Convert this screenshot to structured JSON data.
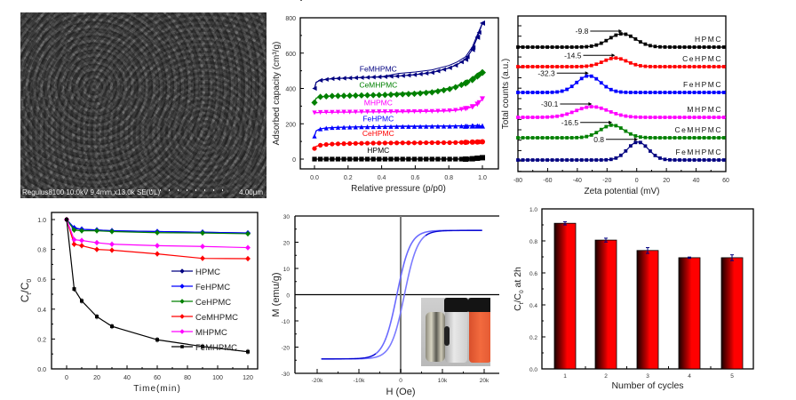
{
  "sem_image": {
    "caption": "Regulus8100 10.0kV 9.4mm x13.0k SE(UL)",
    "scale_bar": "4.00μm"
  },
  "chart_data": [
    {
      "id": "bet",
      "type": "line",
      "title": "",
      "xlabel": "Relative pressure (p/p0)",
      "ylabel": "Adsorbed capacity (cm³/g)",
      "xlim": [
        -0.08,
        1.05
      ],
      "ylim": [
        -50,
        800
      ],
      "xticks": [
        "0.0",
        "0.2",
        "0.4",
        "0.6",
        "0.8",
        "1.0"
      ],
      "xtick_values": [
        0,
        0.2,
        0.4,
        0.6,
        0.8,
        1.0
      ],
      "yticks": [
        "0",
        "200",
        "400",
        "600",
        "800"
      ],
      "ytick_values": [
        0,
        200,
        400,
        600,
        800
      ],
      "x": [
        0.0,
        0.01,
        0.03,
        0.06,
        0.1,
        0.15,
        0.2,
        0.3,
        0.4,
        0.5,
        0.6,
        0.7,
        0.8,
        0.85,
        0.9,
        0.94,
        0.97,
        1.0
      ],
      "series": [
        {
          "name": "HPMC",
          "color": "#000000",
          "marker": "square",
          "values": [
            0,
            0,
            0,
            0,
            0,
            0,
            0,
            0,
            0,
            0,
            0,
            0,
            0,
            0,
            0,
            2,
            5,
            8
          ]
        },
        {
          "name": "CeHPMC",
          "color": "#ff0000",
          "marker": "circle",
          "values": [
            60,
            72,
            78,
            82,
            85,
            87,
            88,
            90,
            91,
            92,
            92,
            93,
            93,
            94,
            95,
            96,
            97,
            98
          ]
        },
        {
          "name": "FeHPMC",
          "color": "#0000ff",
          "marker": "triangle-up",
          "values": [
            130,
            160,
            170,
            175,
            178,
            180,
            181,
            183,
            184,
            185,
            185,
            186,
            186,
            187,
            187,
            188,
            188,
            188
          ]
        },
        {
          "name": "MHPMC",
          "color": "#ff00ff",
          "marker": "triangle-down",
          "values": [
            262,
            263,
            264,
            265,
            265,
            266,
            266,
            267,
            268,
            268,
            269,
            270,
            273,
            277,
            285,
            295,
            310,
            340
          ]
        },
        {
          "name": "CeMHPMC",
          "color": "#008000",
          "marker": "diamond",
          "values": [
            320,
            345,
            352,
            355,
            357,
            358,
            359,
            361,
            363,
            366,
            370,
            378,
            395,
            410,
            430,
            450,
            470,
            490
          ]
        },
        {
          "name": "FeMHPMC",
          "color": "#000080",
          "marker": "triangle-left",
          "values": [
            400,
            435,
            445,
            450,
            455,
            457,
            459,
            462,
            466,
            470,
            478,
            490,
            515,
            535,
            565,
            620,
            690,
            770
          ]
        }
      ],
      "annotations": [
        {
          "text": "FeMHPMC",
          "color": "#000080",
          "x": 0.38,
          "y": 495
        },
        {
          "text": "CeMHPMC",
          "color": "#008000",
          "x": 0.38,
          "y": 405
        },
        {
          "text": "MHPMC",
          "color": "#ff00ff",
          "x": 0.38,
          "y": 305
        },
        {
          "text": "FeHPMC",
          "color": "#0000ff",
          "x": 0.38,
          "y": 215
        },
        {
          "text": "CeHPMC",
          "color": "#ff0000",
          "x": 0.38,
          "y": 130
        },
        {
          "text": "HPMC",
          "color": "#000000",
          "x": 0.38,
          "y": 35
        }
      ]
    },
    {
      "id": "zeta",
      "type": "line",
      "title": "",
      "xlabel": "Zeta potential (mV)",
      "ylabel": "Total counts (a.u.)",
      "xlim": [
        -80,
        60
      ],
      "xticks": [
        "-80",
        "-60",
        "-40",
        "-20",
        "0",
        "20",
        "40",
        "60"
      ],
      "xtick_values": [
        -80,
        -60,
        -40,
        -20,
        0,
        20,
        40,
        60
      ],
      "series": [
        {
          "name": "HPMC",
          "color": "#000000",
          "peak": -9.8,
          "width": 9,
          "height": 1.0,
          "offset": 5,
          "label": "-9.8",
          "legend": "HPMC"
        },
        {
          "name": "CeHPMC",
          "color": "#ff0000",
          "peak": -14.5,
          "width": 8,
          "height": 0.65,
          "offset": 4,
          "label": "-14.5",
          "legend": "CeHPMC"
        },
        {
          "name": "FeHPMC",
          "color": "#0000ff",
          "peak": -32.3,
          "width": 8,
          "height": 1.25,
          "offset": 3,
          "label": "-32.3",
          "legend": "FeHPMC"
        },
        {
          "name": "MHPMC",
          "color": "#ff00ff",
          "peak": -30.1,
          "width": 11,
          "height": 0.8,
          "offset": 2,
          "label": "-30.1",
          "legend": "MHPMC"
        },
        {
          "name": "CeMHPMC",
          "color": "#008000",
          "peak": -16.5,
          "width": 8,
          "height": 0.95,
          "offset": 1,
          "label": "-16.5",
          "legend": "CeMHPMC"
        },
        {
          "name": "FeMHPMC",
          "color": "#000080",
          "peak": 0.8,
          "width": 7,
          "height": 1.35,
          "offset": 0,
          "label": "0.8",
          "legend": "FeMHPMC"
        }
      ]
    },
    {
      "id": "kinetics",
      "type": "line",
      "title": "",
      "xlabel": "Time(min)",
      "ylabel": "Ct/C0",
      "xlim": [
        -10,
        125
      ],
      "ylim": [
        0,
        1.05
      ],
      "xticks": [
        "0",
        "20",
        "40",
        "60",
        "80",
        "100",
        "120"
      ],
      "xtick_values": [
        0,
        20,
        40,
        60,
        80,
        100,
        120
      ],
      "yticks": [
        "0.0",
        "0.2",
        "0.4",
        "0.6",
        "0.8",
        "1.0"
      ],
      "ytick_values": [
        0,
        0.2,
        0.4,
        0.6,
        0.8,
        1.0
      ],
      "x": [
        0,
        5,
        10,
        20,
        30,
        60,
        90,
        120
      ],
      "legend_position": "center-right",
      "series": [
        {
          "name": "HPMC",
          "color": "#000080",
          "values": [
            1.0,
            0.94,
            0.935,
            0.93,
            0.925,
            0.92,
            0.915,
            0.91
          ]
        },
        {
          "name": "FeHPMC",
          "color": "#0000ff",
          "values": [
            1.0,
            0.945,
            0.935,
            0.93,
            0.925,
            0.92,
            0.915,
            0.91
          ]
        },
        {
          "name": "CeHPMC",
          "color": "#008000",
          "values": [
            1.0,
            0.93,
            0.925,
            0.925,
            0.92,
            0.912,
            0.91,
            0.905
          ]
        },
        {
          "name": "CeMHPMC",
          "color": "#ff0000",
          "values": [
            1.0,
            0.835,
            0.825,
            0.8,
            0.795,
            0.77,
            0.74,
            0.738
          ]
        },
        {
          "name": "MHPMC",
          "color": "#ff00ff",
          "values": [
            1.0,
            0.865,
            0.86,
            0.845,
            0.835,
            0.825,
            0.82,
            0.812
          ]
        },
        {
          "name": "FeMHPMC",
          "color": "#000000",
          "values": [
            1.0,
            0.535,
            0.455,
            0.35,
            0.285,
            0.195,
            0.15,
            0.115
          ]
        }
      ]
    },
    {
      "id": "magnetization",
      "type": "line",
      "title": "",
      "xlabel": "H (Oe)",
      "ylabel": "M (emu/g)",
      "xlim": [
        -25000,
        23000
      ],
      "ylim": [
        -30,
        30
      ],
      "xticks": [
        "-20k",
        "-10k",
        "0",
        "10k",
        "20k"
      ],
      "xtick_values": [
        -20000,
        -10000,
        0,
        10000,
        20000
      ],
      "yticks": [
        "30",
        "20",
        "10",
        "0",
        "-10",
        "-20",
        "-30"
      ],
      "ytick_values": [
        30,
        20,
        10,
        0,
        -10,
        -20,
        -30
      ],
      "saturation_magnetization": 24.5,
      "coercivity": 900,
      "field_range": [
        -19000,
        19500
      ],
      "inset": "photo of vials: dispersion and magnet-separated sample"
    },
    {
      "id": "recycling",
      "type": "bar",
      "title": "",
      "xlabel": "Number of cycles",
      "ylabel": "Ct/C0 at 2h",
      "categories": [
        "1",
        "2",
        "3",
        "4",
        "5"
      ],
      "values": [
        0.91,
        0.805,
        0.74,
        0.695,
        0.695
      ],
      "errors": [
        0.01,
        0.012,
        0.018,
        0.004,
        0.018
      ],
      "ylim": [
        0,
        1.0
      ],
      "yticks": [
        "0.0",
        "0.2",
        "0.4",
        "0.6",
        "0.8",
        "1.0"
      ],
      "ytick_values": [
        0,
        0.2,
        0.4,
        0.6,
        0.8,
        1.0
      ],
      "bar_color": "#ff0000",
      "bar_dark": "#1a0000",
      "error_color": "#000080"
    }
  ]
}
